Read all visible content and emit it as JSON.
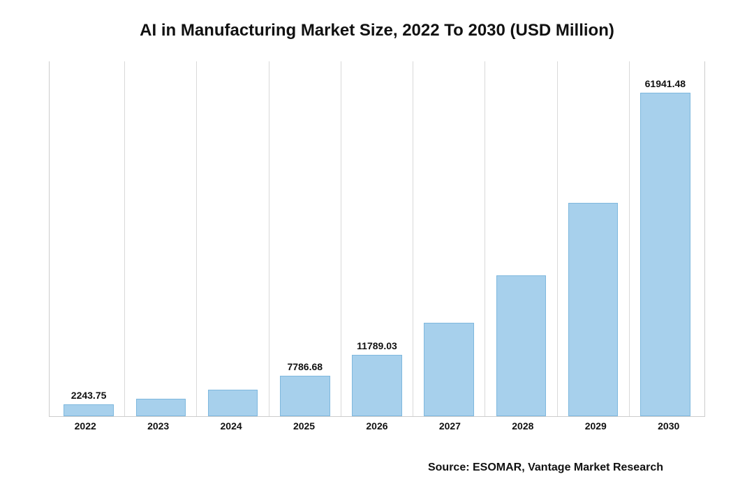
{
  "chart": {
    "type": "bar",
    "title": "AI in Manufacturing Market Size, 2022 To 2030 (USD Million)",
    "title_fontsize": 24,
    "categories": [
      "2022",
      "2023",
      "2024",
      "2025",
      "2026",
      "2027",
      "2028",
      "2029",
      "2030"
    ],
    "values": [
      2243.75,
      3397.0,
      5143.0,
      7786.68,
      11789.03,
      17847.0,
      27017.0,
      40904.0,
      61941.48
    ],
    "value_labels": [
      "2243.75",
      "",
      "",
      "7786.68",
      "11789.03",
      "",
      "",
      "",
      "61941.48"
    ],
    "show_label": [
      true,
      false,
      false,
      true,
      true,
      false,
      false,
      false,
      true
    ],
    "ymax": 68000,
    "bar_fill": "#a7d0ec",
    "bar_stroke": "#7eb8de",
    "grid_color": "#d9d9d9",
    "background_color": "#ffffff",
    "value_label_fontsize": 14,
    "x_tick_fontsize": 14,
    "bar_width_pct": 70
  },
  "source": {
    "label": "Source: ESOMAR, Vantage Market Research",
    "fontsize": 16
  }
}
